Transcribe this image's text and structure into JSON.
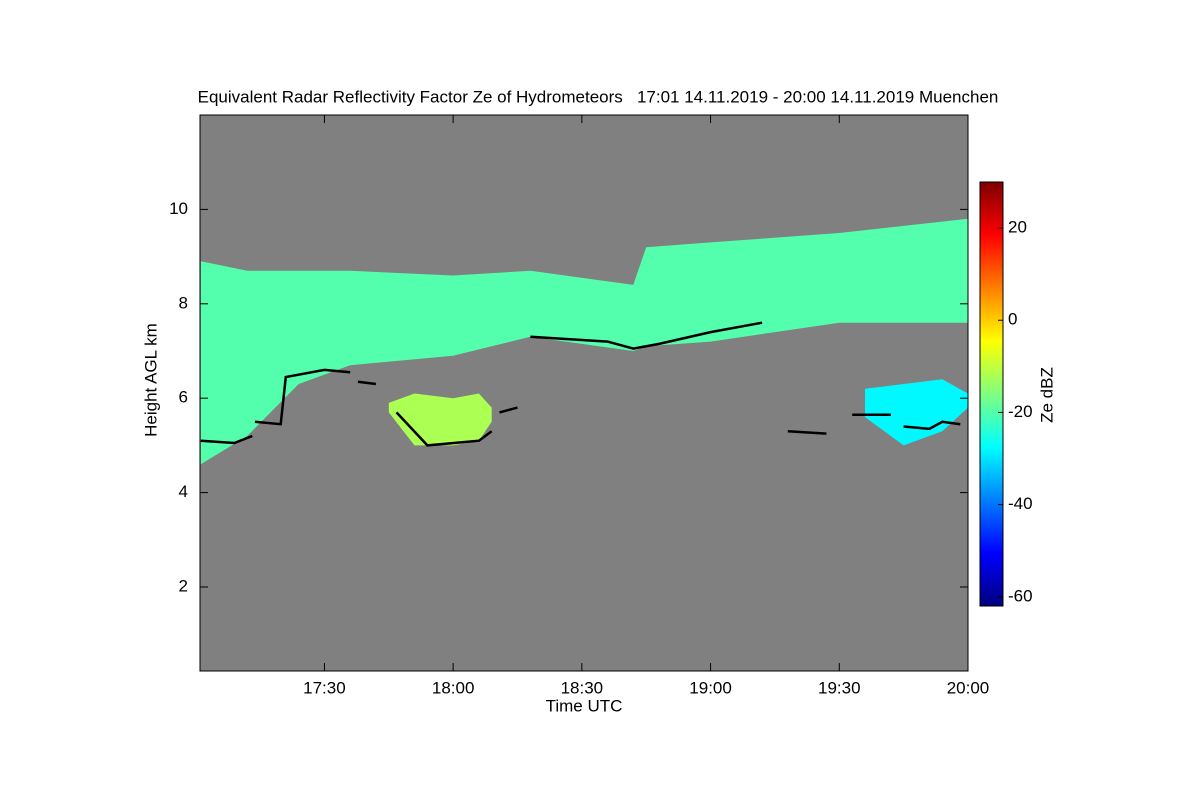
{
  "chart_data": {
    "type": "heatmap",
    "title": "Equivalent Radar Reflectivity Factor Ze of Hydrometeors   17:01 14.11.2019 - 20:00 14.11.2019 Muenchen",
    "xlabel": "Time UTC",
    "ylabel": "Height AGL km",
    "colorbar_label": "Ze dBZ",
    "background": "#808080",
    "xlim": [
      17.0167,
      20.0
    ],
    "xticks": [
      {
        "value": 17.5,
        "label": "17:30"
      },
      {
        "value": 18.0,
        "label": "18:00"
      },
      {
        "value": 18.5,
        "label": "18:30"
      },
      {
        "value": 19.0,
        "label": "19:00"
      },
      {
        "value": 19.5,
        "label": "19:30"
      },
      {
        "value": 20.0,
        "label": "20:00"
      }
    ],
    "ylim": [
      0.22,
      12
    ],
    "yticks": [
      2,
      4,
      6,
      8,
      10
    ],
    "clim": [
      -62,
      30
    ],
    "cticks": [
      -60,
      -40,
      -20,
      0,
      20
    ],
    "colormap": [
      "#00007f",
      "#0000ff",
      "#007fff",
      "#00ffff",
      "#7fff7f",
      "#ffff00",
      "#ff7f00",
      "#ff0000",
      "#7f0000"
    ],
    "layers": [
      {
        "x": [
          17.02,
          17.2,
          17.4,
          17.6,
          18.0,
          18.3,
          18.7,
          18.75,
          19.0,
          19.5,
          20.0
        ],
        "top": [
          8.9,
          8.7,
          8.7,
          8.7,
          8.6,
          8.7,
          8.4,
          9.2,
          9.3,
          9.5,
          9.8
        ],
        "base": [
          4.6,
          5.2,
          6.3,
          6.7,
          6.9,
          7.3,
          7.0,
          7.1,
          7.2,
          7.6,
          7.6
        ],
        "ze": -20
      },
      {
        "x": [
          17.75,
          17.85,
          18.0,
          18.1,
          18.15
        ],
        "top": [
          5.9,
          6.1,
          6.0,
          6.1,
          5.8
        ],
        "base": [
          5.7,
          5.0,
          5.0,
          5.1,
          5.5
        ],
        "ze": -12
      },
      {
        "x": [
          19.6,
          19.75,
          19.9,
          20.0
        ],
        "top": [
          6.2,
          6.3,
          6.4,
          6.1
        ],
        "base": [
          5.6,
          5.0,
          5.3,
          5.8
        ],
        "ze": -28
      }
    ],
    "cloud_base": {
      "color": "#000000",
      "x": [
        17.02,
        17.15,
        17.22,
        null,
        17.23,
        17.33,
        17.35,
        17.5,
        17.6,
        null,
        17.63,
        17.7,
        null,
        17.78,
        17.9,
        18.1,
        18.15,
        null,
        18.18,
        18.25,
        null,
        18.3,
        18.6,
        18.7,
        18.8,
        19.0,
        19.2,
        null,
        19.3,
        19.45,
        null,
        19.55,
        19.7,
        null,
        19.75,
        19.85,
        19.9,
        19.97
      ],
      "y": [
        5.1,
        5.05,
        5.2,
        null,
        5.5,
        5.45,
        6.45,
        6.6,
        6.55,
        null,
        6.35,
        6.3,
        null,
        5.7,
        5.0,
        5.1,
        5.3,
        null,
        5.7,
        5.8,
        null,
        7.3,
        7.2,
        7.05,
        7.15,
        7.4,
        7.6,
        null,
        5.3,
        5.25,
        null,
        5.65,
        5.65,
        null,
        5.4,
        5.35,
        5.5,
        5.45
      ]
    }
  }
}
